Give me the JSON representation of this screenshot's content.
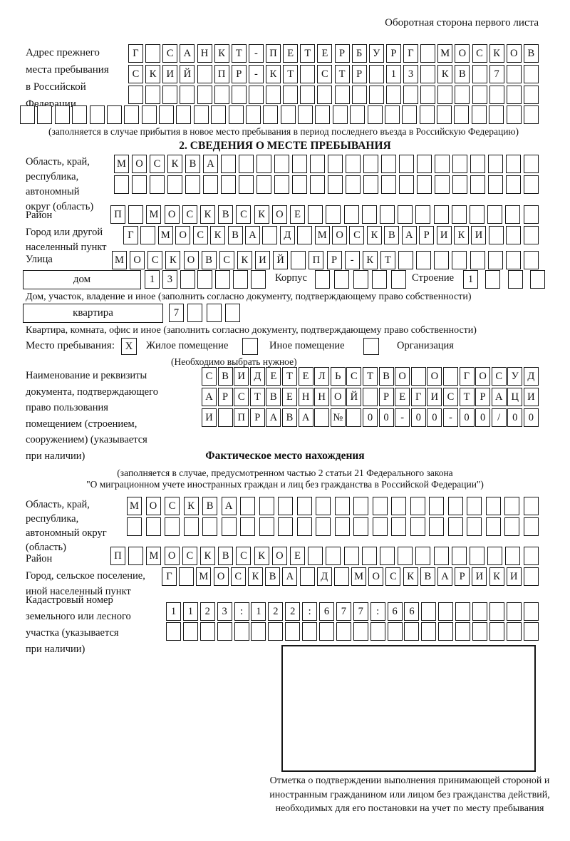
{
  "header_note": "Оборотная сторона первого листа",
  "prev_address": {
    "label": "Адрес прежнего\nместа пребывания\nв Российской\nФедерации",
    "rows": [
      {
        "chars": "Г САНКТ-ПЕТЕРБУРГ МОСКОВ",
        "count": 24
      },
      {
        "chars": "СКИЙ ПР-КТ СТР 13 КВ 7",
        "count": 24
      },
      {
        "chars": "",
        "count": 24
      },
      {
        "chars": "",
        "count": 30
      }
    ],
    "note": "(заполняется в случае прибытия в новое место пребывания в период последнего въезда в Российскую Федерацию)"
  },
  "section2": {
    "title": "2. СВЕДЕНИЯ О МЕСТЕ ПРЕБЫВАНИЯ",
    "oblast": {
      "label": "Область, край,\nреспублика,\nавтономный\nокруг (область)",
      "rows": [
        {
          "chars": "МОСКВА",
          "count": 24
        },
        {
          "chars": "",
          "count": 24
        }
      ]
    },
    "raion": {
      "label": "Район",
      "row": {
        "chars": "П МОСКВСКОЕ",
        "count": 24
      }
    },
    "gorod": {
      "label": "Город или другой\nнаселенный пункт",
      "row": {
        "chars": "Г МОСКВА Д МОСКВАРИКИ",
        "count": 24
      }
    },
    "ulitsa": {
      "label": "Улица",
      "row": {
        "chars": "МОСКОВСКИЙ ПР-КТ",
        "count": 24
      }
    },
    "dom": {
      "house_label": "дом",
      "house_row": {
        "chars": "13",
        "count": 7
      },
      "korpus_label": "Корпус",
      "korpus_row": {
        "chars": "",
        "count": 5
      },
      "stroenie_label": "Строение",
      "stroenie_row": {
        "chars": "1",
        "count": 4
      },
      "note": "Дом, участок, владение и иное (заполнить согласно документу, подтверждающему право собственности)"
    },
    "kvartira": {
      "box_label": "квартира",
      "row": {
        "chars": "7",
        "count": 4
      },
      "note": "Квартира, комната, офис и иное (заполнить согласно документу, подтверждающему право собственности)"
    },
    "mesto": {
      "label": "Место пребывания:",
      "options": [
        {
          "label": "Жилое помещение",
          "mark": "X"
        },
        {
          "label": "Иное помещение",
          "mark": ""
        },
        {
          "label": "Организация",
          "mark": ""
        }
      ],
      "note": "(Необходимо выбрать нужное)"
    },
    "dokument": {
      "label": "Наименование и реквизиты\nдокумента, подтверждающего\nправо пользования\nпомещением (строением,\nсооружением) (указывается\nпри наличии)",
      "rows": [
        {
          "chars": "СВИДЕТЕЛЬСТВО О ГОСУД",
          "count": 21
        },
        {
          "chars": "АРСТВЕННОЙ РЕГИСТРАЦИ",
          "count": 21
        },
        {
          "chars": "И ПРАВА № 00-00-00/000",
          "count": 21
        }
      ]
    }
  },
  "fact_location": {
    "title": "Фактическое место нахождения",
    "note1": "(заполняется в случае, предусмотренном частью 2 статьи 21 Федерального закона",
    "note2": "\"О миграционном учете иностранных граждан и лиц без гражданства в Российской Федерации\")",
    "oblast": {
      "label": "Область, край,\nреспублика,\nавтономный округ\n(область)",
      "rows": [
        {
          "chars": "МОСКВА",
          "count": 22
        },
        {
          "chars": "",
          "count": 22
        }
      ]
    },
    "raion": {
      "label": "Район",
      "row": {
        "chars": "П МОСКВСКОЕ",
        "count": 24
      }
    },
    "gorod": {
      "label": "Город, сельское поселение,\nиной населенный пункт",
      "row": {
        "chars": "Г МОСКВА Д МОСКВАРИКИ",
        "count": 22
      }
    },
    "kadastr": {
      "label": "Кадастровый номер\nземельного или лесного\nучастка (указывается\nпри наличии)",
      "rows": [
        {
          "chars": "1123:122:677:66",
          "count": 22
        },
        {
          "chars": "",
          "count": 22
        }
      ]
    },
    "stamp_note": "Отметка о подтверждении выполнения принимающей стороной и иностранным гражданином или лицом без гражданства действий, необходимых для его постановки на учет по месту пребывания"
  }
}
